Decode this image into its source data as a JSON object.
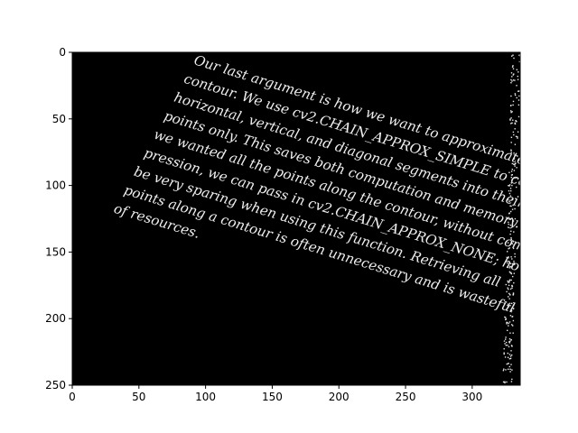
{
  "chart_data": {
    "type": "image",
    "title": "",
    "xlabel": "",
    "ylabel": "",
    "xlim": [
      0,
      336
    ],
    "ylim": [
      250,
      0
    ],
    "x_ticks": [
      0,
      50,
      100,
      150,
      200,
      250,
      300
    ],
    "y_ticks": [
      0,
      50,
      100,
      150,
      200,
      250
    ],
    "image": {
      "background": "#000000",
      "foreground": "#f0f0f0",
      "text_rotation_deg": 17,
      "text_lines": [
        "Our last argument is how we want to approximate the",
        "contour.  We use cv2.CHAIN_APPROX_SIMPLE to compress",
        "horizontal, vertical, and diagonal segments into their end",
        "points only.  This saves both computation and memory.  If",
        "we wanted all the points along the contour, without com-",
        "pression, we can pass in cv2.CHAIN_APPROX_NONE; however,",
        "be very sparing when using this function.  Retrieving all",
        "points along a contour is often unnecessary and is wasteful",
        "of resources."
      ]
    }
  }
}
